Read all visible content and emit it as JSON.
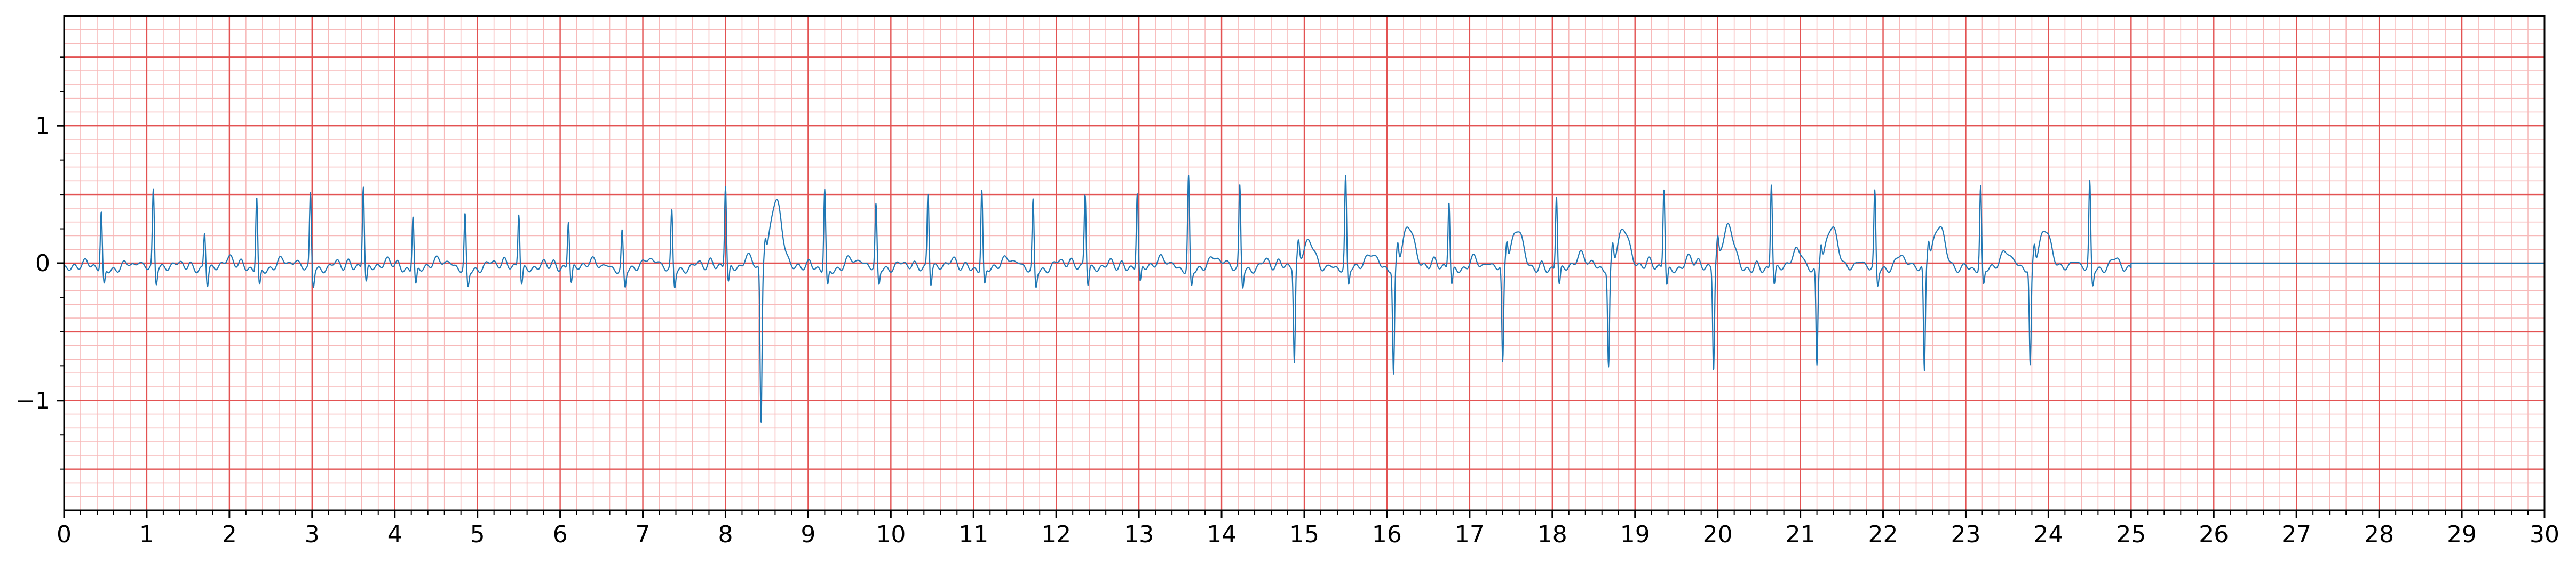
{
  "chart_data": {
    "type": "line",
    "title": "",
    "xlabel": "",
    "ylabel": "",
    "xlim": [
      0,
      30
    ],
    "ylim": [
      -1.8,
      1.8
    ],
    "grid": {
      "major_x_step": 1,
      "minor_x_step": 0.2,
      "major_y_step": 0.5,
      "minor_y_step": 0.1,
      "major_color": "#e35252",
      "minor_color": "#f7b9b9"
    },
    "x_ticks": [
      "0",
      "1",
      "2",
      "3",
      "4",
      "5",
      "6",
      "7",
      "8",
      "9",
      "10",
      "11",
      "12",
      "13",
      "14",
      "15",
      "16",
      "17",
      "18",
      "19",
      "20",
      "21",
      "22",
      "23",
      "24",
      "25",
      "26",
      "27",
      "28",
      "29",
      "30"
    ],
    "y_ticks": [
      {
        "value": 1,
        "label": "1"
      },
      {
        "value": 0,
        "label": "0"
      },
      {
        "value": -1,
        "label": "−1"
      }
    ],
    "series": [
      {
        "color": "#1f77b4",
        "signal_end": 25,
        "beat_times": [
          0.45,
          1.08,
          1.7,
          2.33,
          2.98,
          3.62,
          4.22,
          4.85,
          5.5,
          6.1,
          6.75,
          7.35,
          8.0,
          8.43,
          9.2,
          9.82,
          10.45,
          11.1,
          11.72,
          12.35,
          12.98,
          13.6,
          14.22,
          14.88,
          15.5,
          16.08,
          16.75,
          17.4,
          18.05,
          18.68,
          19.35,
          19.95,
          20.65,
          21.2,
          21.9,
          22.5,
          23.18,
          23.78,
          24.5
        ],
        "r_peaks": [
          0.42,
          0.55,
          0.27,
          0.55,
          0.54,
          0.6,
          0.4,
          0.4,
          0.4,
          0.35,
          0.28,
          0.42,
          0.6,
          -1.15,
          0.6,
          0.45,
          0.54,
          0.58,
          0.5,
          0.54,
          0.55,
          0.68,
          0.6,
          -0.7,
          0.66,
          -0.78,
          0.5,
          -0.72,
          0.55,
          -0.72,
          0.6,
          -0.75,
          0.64,
          -0.72,
          0.55,
          -0.78,
          0.6,
          -0.72,
          0.62
        ],
        "t_wave_peaks": [
          0.06,
          0.06,
          0.07,
          0.07,
          0.07,
          0.07,
          0.06,
          0.06,
          0.06,
          0.06,
          0.06,
          0.06,
          0.08,
          0.5,
          0.08,
          0.07,
          0.07,
          0.07,
          0.07,
          0.07,
          0.08,
          0.08,
          0.08,
          0.2,
          0.1,
          0.32,
          0.1,
          0.28,
          0.1,
          0.3,
          0.1,
          0.3,
          0.12,
          0.32,
          0.12,
          0.3,
          0.12,
          0.3,
          0.1
        ],
        "baseline_after_end": 0
      }
    ]
  }
}
